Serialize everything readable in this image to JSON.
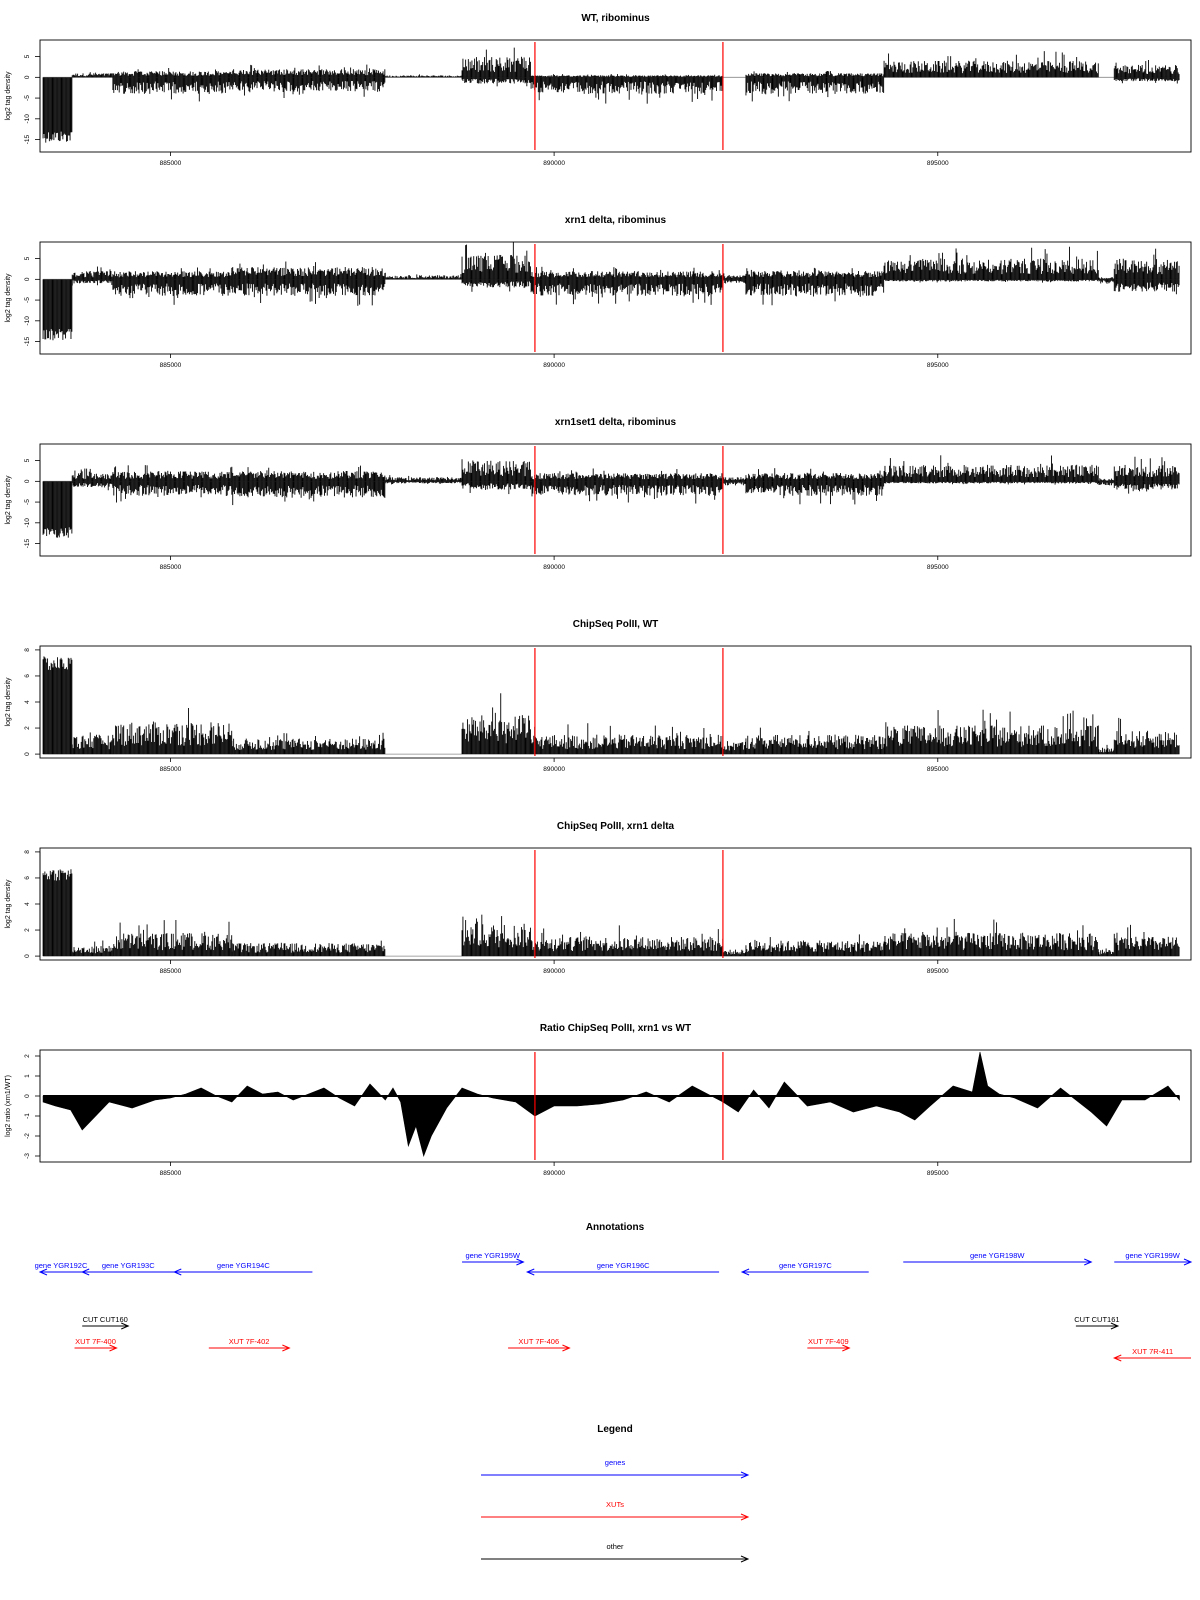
{
  "chart_data": [
    {
      "type": "bar",
      "panel": "wt-ribominus",
      "title": "WT, ribominus",
      "ylabel": "log2 tag density",
      "xlim": [
        883300,
        898300
      ],
      "ylim": [
        -18,
        9
      ],
      "yticks": [
        "-15",
        "-10",
        "-5",
        "0",
        "5"
      ],
      "ytick_values": [
        -15,
        -10,
        -5,
        0,
        5
      ],
      "xticks": [
        "885000",
        "890000",
        "895000"
      ],
      "xtick_values": [
        885000,
        890000,
        895000
      ],
      "markers": [
        889750,
        892200
      ],
      "series": [
        {
          "values": [
            {
              "x0": 883340,
              "x1": 883720,
              "plus": 0,
              "minus": -15
            },
            {
              "x0": 883720,
              "x1": 884250,
              "plus": 1,
              "minus": 0
            },
            {
              "x0": 884250,
              "x1": 885800,
              "plus": 1.5,
              "minus": -4
            },
            {
              "x0": 885800,
              "x1": 887800,
              "plus": 2,
              "minus": -3.5
            },
            {
              "x0": 887800,
              "x1": 888800,
              "plus": 0.5,
              "minus": 0
            },
            {
              "x0": 888800,
              "x1": 889700,
              "plus": 5,
              "minus": -1.5
            },
            {
              "x0": 889700,
              "x1": 892200,
              "plus": 0.5,
              "minus": -4
            },
            {
              "x0": 892200,
              "x1": 892500,
              "plus": 0,
              "minus": 0
            },
            {
              "x0": 892500,
              "x1": 894300,
              "plus": 1,
              "minus": -4
            },
            {
              "x0": 894300,
              "x1": 897100,
              "plus": 4,
              "minus": 0
            },
            {
              "x0": 897100,
              "x1": 897300,
              "plus": 0,
              "minus": 0
            },
            {
              "x0": 897300,
              "x1": 898150,
              "plus": 3,
              "minus": -1
            }
          ]
        }
      ]
    },
    {
      "type": "bar",
      "panel": "xrn1-ribominus",
      "title": "xrn1 delta, ribominus",
      "ylabel": "log2 tag density",
      "xlim": [
        883300,
        898300
      ],
      "ylim": [
        -18,
        9
      ],
      "yticks": [
        "-15",
        "-10",
        "-5",
        "0",
        "5"
      ],
      "ytick_values": [
        -15,
        -10,
        -5,
        0,
        5
      ],
      "xticks": [
        "885000",
        "890000",
        "895000"
      ],
      "xtick_values": [
        885000,
        890000,
        895000
      ],
      "markers": [
        889750,
        892200
      ],
      "series": [
        {
          "values": [
            {
              "x0": 883340,
              "x1": 883720,
              "plus": 0,
              "minus": -14
            },
            {
              "x0": 883720,
              "x1": 884250,
              "plus": 2,
              "minus": -1
            },
            {
              "x0": 884250,
              "x1": 885800,
              "plus": 2,
              "minus": -4
            },
            {
              "x0": 885800,
              "x1": 887800,
              "plus": 3,
              "minus": -4
            },
            {
              "x0": 887800,
              "x1": 888800,
              "plus": 1,
              "minus": 0
            },
            {
              "x0": 888800,
              "x1": 889700,
              "plus": 6,
              "minus": -2
            },
            {
              "x0": 889700,
              "x1": 892200,
              "plus": 2,
              "minus": -4
            },
            {
              "x0": 892200,
              "x1": 892500,
              "plus": 1,
              "minus": -1
            },
            {
              "x0": 892500,
              "x1": 894300,
              "plus": 2,
              "minus": -4
            },
            {
              "x0": 894300,
              "x1": 897100,
              "plus": 5,
              "minus": -0.5
            },
            {
              "x0": 897100,
              "x1": 897300,
              "plus": 0.5,
              "minus": -1
            },
            {
              "x0": 897300,
              "x1": 898150,
              "plus": 5,
              "minus": -3
            }
          ]
        }
      ]
    },
    {
      "type": "bar",
      "panel": "xrn1set1-ribominus",
      "title": "xrn1set1 delta, ribominus",
      "ylabel": "log2 tag density",
      "xlim": [
        883300,
        898300
      ],
      "ylim": [
        -18,
        9
      ],
      "yticks": [
        "-15",
        "-10",
        "-5",
        "0",
        "5"
      ],
      "ytick_values": [
        -15,
        -10,
        -5,
        0,
        5
      ],
      "xticks": [
        "885000",
        "890000",
        "895000"
      ],
      "xtick_values": [
        885000,
        890000,
        895000
      ],
      "markers": [
        889750,
        892200
      ],
      "series": [
        {
          "values": [
            {
              "x0": 883340,
              "x1": 883720,
              "plus": 0,
              "minus": -13
            },
            {
              "x0": 883720,
              "x1": 884250,
              "plus": 2,
              "minus": -1.5
            },
            {
              "x0": 884250,
              "x1": 885800,
              "plus": 2.5,
              "minus": -3.5
            },
            {
              "x0": 885800,
              "x1": 887800,
              "plus": 2.5,
              "minus": -4
            },
            {
              "x0": 887800,
              "x1": 888800,
              "plus": 1,
              "minus": -0.5
            },
            {
              "x0": 888800,
              "x1": 889700,
              "plus": 5,
              "minus": -2
            },
            {
              "x0": 889700,
              "x1": 892200,
              "plus": 2,
              "minus": -3.5
            },
            {
              "x0": 892200,
              "x1": 892500,
              "plus": 1,
              "minus": -1
            },
            {
              "x0": 892500,
              "x1": 894300,
              "plus": 2,
              "minus": -3.5
            },
            {
              "x0": 894300,
              "x1": 897100,
              "plus": 4,
              "minus": -0.5
            },
            {
              "x0": 897100,
              "x1": 897300,
              "plus": 0.5,
              "minus": -1
            },
            {
              "x0": 897300,
              "x1": 898150,
              "plus": 4,
              "minus": -2
            }
          ]
        }
      ]
    },
    {
      "type": "bar",
      "panel": "chipseq-wt",
      "title": "ChipSeq PolII, WT",
      "ylabel": "log2 tag density",
      "xlim": [
        883300,
        898300
      ],
      "ylim": [
        -0.3,
        8.3
      ],
      "yticks": [
        "0",
        "2",
        "4",
        "6",
        "8"
      ],
      "ytick_values": [
        0,
        2,
        4,
        6,
        8
      ],
      "xticks": [
        "885000",
        "890000",
        "895000"
      ],
      "xtick_values": [
        885000,
        890000,
        895000
      ],
      "markers": [
        889750,
        892200
      ],
      "series": [
        {
          "values": [
            {
              "x0": 883340,
              "x1": 883720,
              "plus": 7.5,
              "minus": 0
            },
            {
              "x0": 883720,
              "x1": 884250,
              "plus": 1.5,
              "minus": 0
            },
            {
              "x0": 884250,
              "x1": 885800,
              "plus": 2.5,
              "minus": 0
            },
            {
              "x0": 885800,
              "x1": 887800,
              "plus": 1.2,
              "minus": 0
            },
            {
              "x0": 887800,
              "x1": 888800,
              "plus": 0,
              "minus": 0
            },
            {
              "x0": 888800,
              "x1": 889700,
              "plus": 3,
              "minus": 0
            },
            {
              "x0": 889700,
              "x1": 892200,
              "plus": 1.5,
              "minus": 0
            },
            {
              "x0": 892200,
              "x1": 892500,
              "plus": 1,
              "minus": 0
            },
            {
              "x0": 892500,
              "x1": 894300,
              "plus": 1.5,
              "minus": 0
            },
            {
              "x0": 894300,
              "x1": 897100,
              "plus": 2.2,
              "minus": 0
            },
            {
              "x0": 897100,
              "x1": 897300,
              "plus": 0.5,
              "minus": 0
            },
            {
              "x0": 897300,
              "x1": 898150,
              "plus": 1.8,
              "minus": 0
            }
          ]
        }
      ]
    },
    {
      "type": "bar",
      "panel": "chipseq-xrn1",
      "title": "ChipSeq PolII, xrn1 delta",
      "ylabel": "log2 tag density",
      "xlim": [
        883300,
        898300
      ],
      "ylim": [
        -0.3,
        8.3
      ],
      "yticks": [
        "0",
        "2",
        "4",
        "6",
        "8"
      ],
      "ytick_values": [
        0,
        2,
        4,
        6,
        8
      ],
      "xticks": [
        "885000",
        "890000",
        "895000"
      ],
      "xtick_values": [
        885000,
        890000,
        895000
      ],
      "markers": [
        889750,
        892200
      ],
      "series": [
        {
          "values": [
            {
              "x0": 883340,
              "x1": 883720,
              "plus": 6.8,
              "minus": 0
            },
            {
              "x0": 883720,
              "x1": 884250,
              "plus": 0.8,
              "minus": 0
            },
            {
              "x0": 884250,
              "x1": 885800,
              "plus": 1.8,
              "minus": 0
            },
            {
              "x0": 885800,
              "x1": 887800,
              "plus": 1,
              "minus": 0
            },
            {
              "x0": 887800,
              "x1": 888800,
              "plus": 0,
              "minus": 0
            },
            {
              "x0": 888800,
              "x1": 889700,
              "plus": 2.5,
              "minus": 0
            },
            {
              "x0": 889700,
              "x1": 892200,
              "plus": 1.5,
              "minus": 0
            },
            {
              "x0": 892200,
              "x1": 892500,
              "plus": 0.5,
              "minus": 0
            },
            {
              "x0": 892500,
              "x1": 894300,
              "plus": 1.2,
              "minus": 0
            },
            {
              "x0": 894300,
              "x1": 897100,
              "plus": 1.8,
              "minus": 0
            },
            {
              "x0": 897100,
              "x1": 897300,
              "plus": 0.5,
              "minus": 0
            },
            {
              "x0": 897300,
              "x1": 898150,
              "plus": 1.5,
              "minus": 0
            }
          ]
        }
      ]
    },
    {
      "type": "area",
      "panel": "ratio",
      "title": "Ratio ChipSeq PolII, xrn1 vs WT",
      "ylabel": "log2 ratio (xrn1/WT)",
      "xlim": [
        883300,
        898300
      ],
      "ylim": [
        -3.3,
        2.3
      ],
      "yticks": [
        "-3",
        "-2",
        "-1",
        "0",
        "1",
        "2"
      ],
      "ytick_values": [
        -3,
        -2,
        -1,
        0,
        1,
        2
      ],
      "xticks": [
        "885000",
        "890000",
        "895000"
      ],
      "xtick_values": [
        885000,
        890000,
        895000
      ],
      "markers": [
        889750,
        892200
      ],
      "series": [
        {
          "x": [
            883340,
            883500,
            883700,
            883850,
            884050,
            884200,
            884500,
            884800,
            885000,
            885200,
            885400,
            885600,
            885800,
            886000,
            886200,
            886400,
            886600,
            886800,
            887000,
            887200,
            887400,
            887600,
            887800,
            887900,
            888000,
            888100,
            888200,
            888300,
            888400,
            888500,
            888600,
            888800,
            889000,
            889200,
            889500,
            889750,
            890000,
            890300,
            890600,
            890900,
            891200,
            891500,
            891800,
            892000,
            892200,
            892400,
            892600,
            892800,
            893000,
            893300,
            893600,
            893900,
            894200,
            894500,
            894700,
            894900,
            895200,
            895450,
            895550,
            895650,
            895800,
            896000,
            896300,
            896600,
            896800,
            897000,
            897200,
            897400,
            897700,
            898000,
            898150
          ],
          "y": [
            -0.3,
            -0.5,
            -0.7,
            -1.7,
            -0.9,
            -0.3,
            -0.6,
            -0.2,
            -0.1,
            0.1,
            0.4,
            0,
            -0.3,
            0.5,
            0.1,
            0.2,
            -0.2,
            0.1,
            0.4,
            -0.1,
            -0.5,
            0.6,
            -0.2,
            0.4,
            -0.3,
            -2.5,
            -1.5,
            -3,
            -2,
            -1.3,
            -0.6,
            0.4,
            0.1,
            -0.1,
            -0.3,
            -1,
            -0.5,
            -0.5,
            -0.4,
            -0.2,
            0.2,
            -0.3,
            0.5,
            0.1,
            -0.3,
            -0.8,
            0.3,
            -0.6,
            0.7,
            -0.5,
            -0.3,
            -0.8,
            -0.5,
            -0.8,
            -1.2,
            -0.5,
            0.5,
            0.2,
            2.2,
            0.5,
            0.1,
            -0.1,
            -0.6,
            0.4,
            -0.2,
            -0.8,
            -1.5,
            -0.2,
            -0.2,
            0.5,
            -0.2
          ]
        }
      ]
    }
  ],
  "annotations": {
    "title": "Annotations",
    "colors": {
      "genes": "#0000ff",
      "xuts": "#ff0000",
      "other": "#000000"
    },
    "features": [
      {
        "label": "gene YGR192C",
        "cls": "genes",
        "dir": "left",
        "x0": 883300,
        "x1": 883300,
        "row": 2
      },
      {
        "label": "gene YGR193C",
        "cls": "genes",
        "dir": "left",
        "x0": 883850,
        "x1": 885050,
        "row": 2
      },
      {
        "label": "gene YGR194C",
        "cls": "genes",
        "dir": "left",
        "x0": 885050,
        "x1": 886850,
        "row": 2
      },
      {
        "label": "gene YGR195W",
        "cls": "genes",
        "dir": "right",
        "x0": 888800,
        "x1": 889600,
        "row": 1
      },
      {
        "label": "gene YGR196C",
        "cls": "genes",
        "dir": "left",
        "x0": 889650,
        "x1": 892150,
        "row": 2
      },
      {
        "label": "gene YGR197C",
        "cls": "genes",
        "dir": "left",
        "x0": 892450,
        "x1": 894100,
        "row": 2
      },
      {
        "label": "gene YGR198W",
        "cls": "genes",
        "dir": "right",
        "x0": 894550,
        "x1": 897000,
        "row": 1
      },
      {
        "label": "gene YGR199W",
        "cls": "genes",
        "dir": "right",
        "x0": 897300,
        "x1": 898300,
        "row": 1
      },
      {
        "label": "CUT CUT160",
        "cls": "other",
        "dir": "right",
        "x0": 883850,
        "x1": 884450,
        "row": 4
      },
      {
        "label": "CUT CUT161",
        "cls": "other",
        "dir": "right",
        "x0": 896800,
        "x1": 897000,
        "row": 4
      },
      {
        "label": "XUT 7F-400",
        "cls": "xuts",
        "dir": "right",
        "x0": 883750,
        "x1": 883750,
        "row": 5
      },
      {
        "label": "XUT 7F-402",
        "cls": "xuts",
        "dir": "right",
        "x0": 885500,
        "x1": 886550,
        "row": 5
      },
      {
        "label": "XUT 7F-406",
        "cls": "xuts",
        "dir": "right",
        "x0": 889400,
        "x1": 890200,
        "row": 5
      },
      {
        "label": "XUT 7F-409",
        "cls": "xuts",
        "dir": "right",
        "x0": 893300,
        "x1": 893800,
        "row": 5
      },
      {
        "label": "XUT 7R-411",
        "cls": "xuts",
        "dir": "left",
        "x0": 897300,
        "x1": 898300,
        "row": 6
      }
    ]
  },
  "legend": {
    "title": "Legend",
    "items": [
      {
        "label": "genes",
        "color": "#0000ff"
      },
      {
        "label": "XUTs",
        "color": "#ff0000"
      },
      {
        "label": "other",
        "color": "#000000"
      }
    ]
  }
}
